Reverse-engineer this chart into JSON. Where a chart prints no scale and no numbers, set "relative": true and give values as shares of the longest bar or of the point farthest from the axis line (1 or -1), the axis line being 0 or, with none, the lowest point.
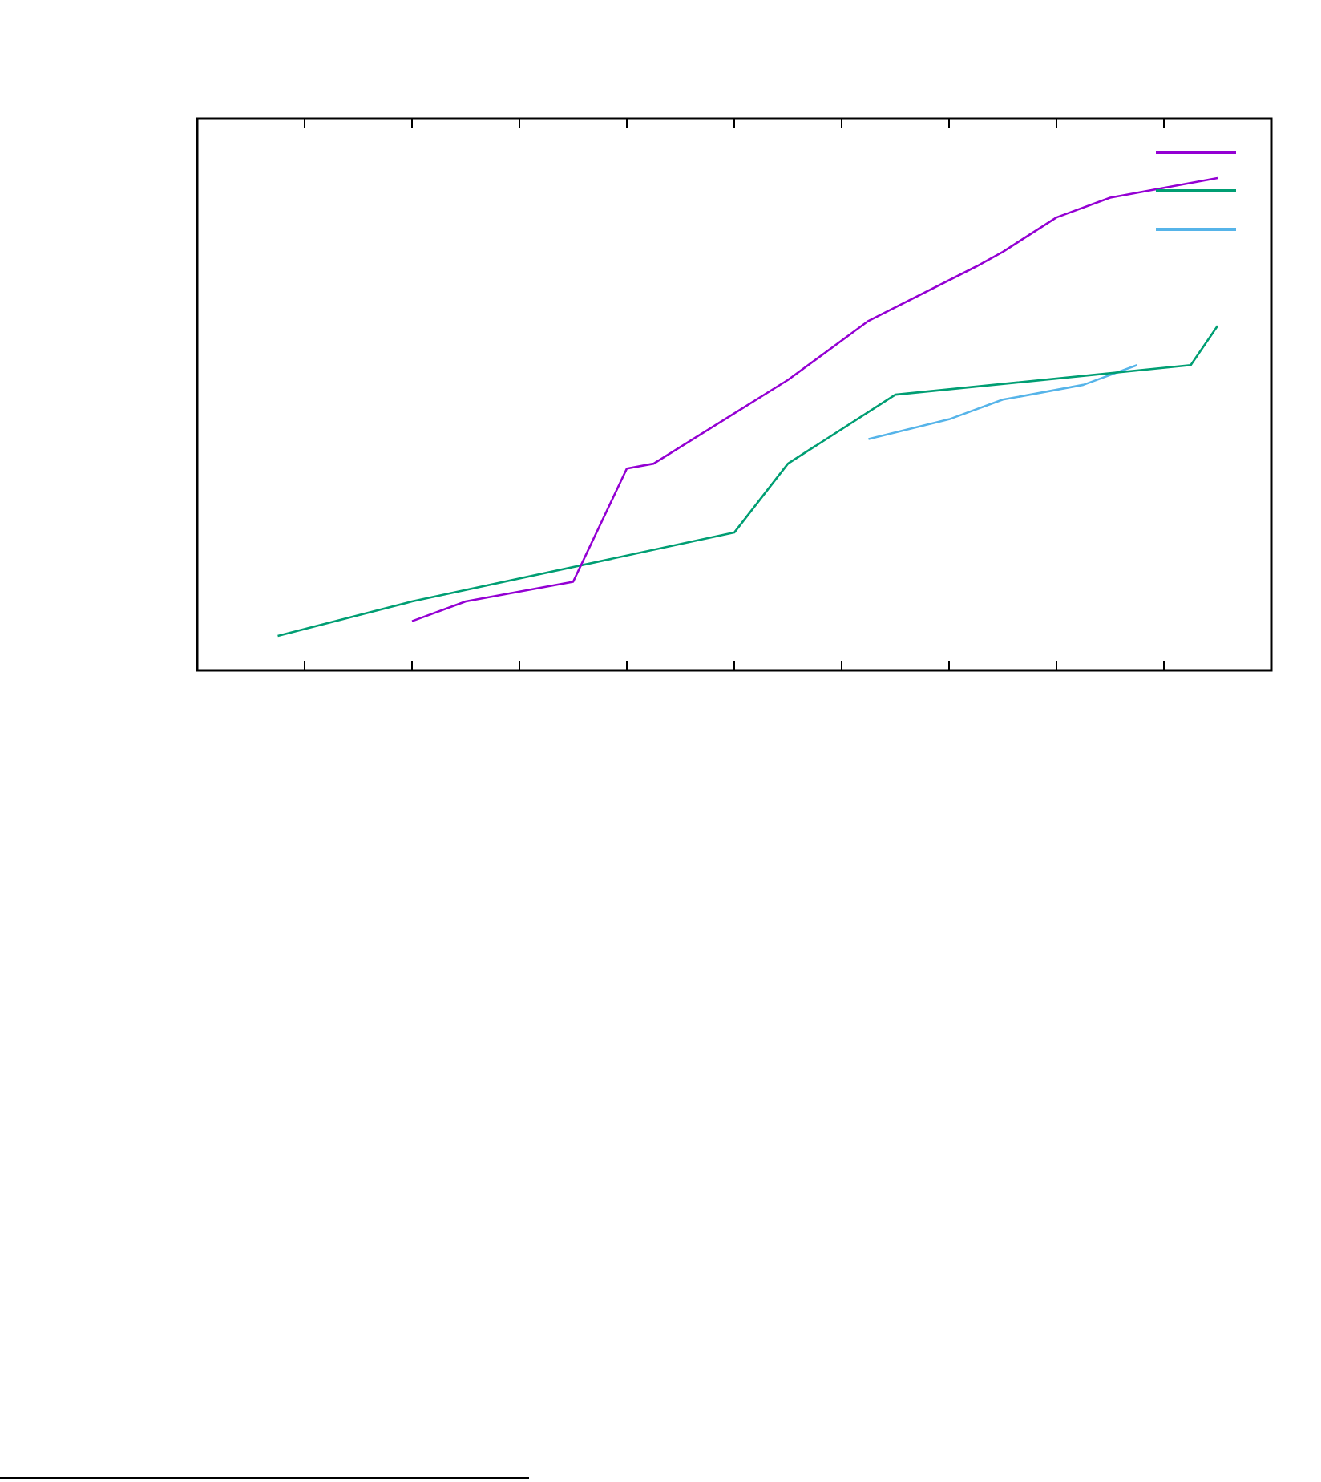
{
  "chart_data": {
    "type": "line",
    "relative": true,
    "grid": false,
    "marker": "none",
    "line_style": "solid",
    "categories": [
      null,
      null,
      null,
      null,
      null,
      null,
      null,
      null,
      null,
      null,
      null,
      null,
      null,
      null,
      null,
      null,
      null,
      null,
      null,
      null,
      null,
      null,
      null,
      null,
      null,
      null,
      null,
      null,
      null,
      null,
      null,
      null,
      null,
      null,
      null,
      null,
      null,
      null,
      null,
      null,
      null
    ],
    "series": [
      {
        "color": "#9400d3",
        "values": [
          null,
          null,
          null,
          null,
          null,
          null,
          null,
          null,
          0.1,
          null,
          0.14,
          null,
          null,
          null,
          0.18,
          null,
          0.41,
          0.42,
          null,
          null,
          null,
          null,
          0.59,
          null,
          null,
          0.71,
          null,
          null,
          null,
          0.82,
          0.85,
          null,
          0.92,
          null,
          0.96,
          null,
          0.98,
          null,
          1.0,
          null,
          null
        ]
      },
      {
        "color": "#009e73",
        "values": [
          null,
          null,
          null,
          0.07,
          null,
          null,
          null,
          null,
          0.14,
          null,
          null,
          null,
          null,
          null,
          null,
          null,
          null,
          null,
          null,
          null,
          0.28,
          null,
          0.42,
          null,
          null,
          null,
          0.56,
          null,
          null,
          null,
          null,
          null,
          null,
          null,
          null,
          null,
          null,
          0.62,
          0.7,
          null,
          null
        ]
      },
      {
        "color": "#56b4e9",
        "values": [
          null,
          null,
          null,
          null,
          null,
          null,
          null,
          null,
          null,
          null,
          null,
          null,
          null,
          null,
          null,
          null,
          null,
          null,
          null,
          null,
          null,
          null,
          null,
          null,
          null,
          0.47,
          null,
          null,
          0.51,
          null,
          0.55,
          null,
          null,
          0.58,
          null,
          0.62,
          null,
          null,
          null,
          null,
          null
        ]
      }
    ]
  }
}
